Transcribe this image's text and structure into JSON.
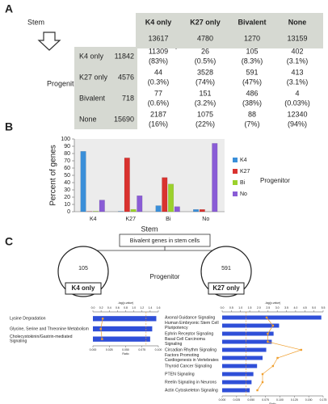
{
  "panel_a": {
    "label": "A",
    "stem_label": "Stem",
    "progenitor_label": "Progenitor",
    "columns": [
      {
        "name": "K4 only",
        "count": 13617
      },
      {
        "name": "K27 only",
        "count": 4780
      },
      {
        "name": "Bivalent",
        "count": 1270
      },
      {
        "name": "None",
        "count": 13159
      }
    ],
    "rows": [
      {
        "name": "K4 only",
        "count": 11842,
        "cells": [
          [
            11309,
            "(83%)"
          ],
          [
            26,
            "(0.5%)"
          ],
          [
            105,
            "(8.3%)"
          ],
          [
            402,
            "(3.1%)"
          ]
        ]
      },
      {
        "name": "K27 only",
        "count": 4576,
        "cells": [
          [
            44,
            "(0.3%)"
          ],
          [
            3528,
            "(74%)"
          ],
          [
            591,
            "(47%)"
          ],
          [
            413,
            "(3.1%)"
          ]
        ]
      },
      {
        "name": "Bivalent",
        "count": 718,
        "cells": [
          [
            77,
            "(0.6%)"
          ],
          [
            151,
            "(3.2%)"
          ],
          [
            486,
            "(38%)"
          ],
          [
            4,
            "(0.03%)"
          ]
        ]
      },
      {
        "name": "None",
        "count": 15690,
        "cells": [
          [
            2187,
            "(16%)"
          ],
          [
            1075,
            "(22%)"
          ],
          [
            88,
            "(7%)"
          ],
          [
            12340,
            "(94%)"
          ]
        ]
      }
    ]
  },
  "panel_c": {
    "label": "C",
    "box": "Bivalent genes in stem cells",
    "progenitor": "Progenitor",
    "groups": [
      {
        "count": 105,
        "label": "K4 only"
      },
      {
        "count": 591,
        "label": "K27 only"
      }
    ]
  },
  "chart_data": [
    {
      "type": "bar",
      "panel_label": "B",
      "categories": [
        "K4",
        "K27",
        "Bi",
        "No"
      ],
      "xlabel": "Stem",
      "ylabel": "Percent of genes",
      "legend_title": "Progenitor",
      "legend": "right",
      "ylim": [
        0,
        100
      ],
      "yticks": [
        0,
        10,
        20,
        30,
        40,
        50,
        60,
        70,
        80,
        90,
        100
      ],
      "series": [
        {
          "name": "K4",
          "color": "#3a8fd9",
          "values": [
            83,
            0.5,
            8.3,
            3.1
          ]
        },
        {
          "name": "K27",
          "color": "#d9322f",
          "values": [
            0.3,
            74,
            47,
            3.1
          ]
        },
        {
          "name": "Bi",
          "color": "#9bd12c",
          "values": [
            0.6,
            3.2,
            38,
            0.03
          ]
        },
        {
          "name": "No",
          "color": "#8a5cd6",
          "values": [
            16,
            22,
            7,
            94
          ]
        }
      ]
    },
    {
      "type": "pathway",
      "categories": [
        "Lysine Degradation",
        "Glycine, Serine and Threonine Metabolism",
        "Cholecystokinin/Gastrin-mediated Signaling"
      ],
      "values": [
        1.55,
        1.45,
        1.4
      ],
      "ratio": [
        0.015,
        0.012,
        0.014
      ],
      "color": "#2f4fd8",
      "ratio_color": "#f0a030",
      "threshold": 1.3,
      "xlabel": "-log(p-value)",
      "x2label": "Ratio",
      "xlim": [
        0,
        1.6
      ],
      "xticks": [
        {
          "value": 0,
          "label": "0.0"
        },
        {
          "value": 0.2,
          "label": "0.2"
        },
        {
          "value": 0.4,
          "label": "0.4"
        },
        {
          "value": 0.6,
          "label": "0.6"
        },
        {
          "value": 0.8,
          "label": "0.8"
        },
        {
          "value": 1,
          "label": "1.0"
        },
        {
          "value": 1.2,
          "label": "1.2"
        },
        {
          "value": 1.4,
          "label": "1.4"
        },
        {
          "value": 1.6,
          "label": "1.6"
        }
      ],
      "x2lim": [
        0,
        0.1
      ],
      "x2ticks": [
        {
          "value": 0,
          "label": "0.000"
        },
        {
          "value": 0.025,
          "label": "0.025"
        },
        {
          "value": 0.05,
          "label": "0.050"
        },
        {
          "value": 0.075,
          "label": "0.075"
        },
        {
          "value": 0.1,
          "label": "0.100"
        }
      ]
    },
    {
      "type": "pathway",
      "categories": [
        "Axonal Guidance Signaling",
        "Human Embryonic Stem Cell Pluripotency",
        "Ephrin Receptor Signaling",
        "Basal Cell Carcinoma Signaling",
        "Circadian Rhythm Signaling",
        "Factors Promoting Cardiogenesis in Vertebrates",
        "Thyroid Cancer Signaling",
        "PTEN Signaling",
        "Reelin Signaling in Neurons",
        "Actin Cytoskeleton Signaling"
      ],
      "values": [
        5.4,
        3.1,
        2.8,
        2.7,
        2.4,
        2.2,
        1.9,
        1.7,
        1.6,
        1.5
      ],
      "ratio": [
        0.077,
        0.088,
        0.079,
        0.079,
        0.137,
        0.096,
        0.088,
        0.07,
        0.07,
        0.061
      ],
      "color": "#2f4fd8",
      "ratio_color": "#f0a030",
      "threshold": 1.3,
      "xlabel": "-log(p-value)",
      "x2label": "Ratio",
      "xlim": [
        0,
        5.5
      ],
      "xticks": [
        {
          "value": 0,
          "label": "0.0"
        },
        {
          "value": 0.5,
          "label": "0.5"
        },
        {
          "value": 1,
          "label": "1.0"
        },
        {
          "value": 1.5,
          "label": "1.5"
        },
        {
          "value": 2,
          "label": "2.0"
        },
        {
          "value": 2.5,
          "label": "2.5"
        },
        {
          "value": 3,
          "label": "3.0"
        },
        {
          "value": 3.5,
          "label": "3.5"
        },
        {
          "value": 4,
          "label": "4.0"
        },
        {
          "value": 4.5,
          "label": "4.5"
        },
        {
          "value": 5,
          "label": "5.0"
        },
        {
          "value": 5.5,
          "label": "5.5"
        }
      ],
      "x2lim": [
        0,
        0.175
      ],
      "x2ticks": [
        {
          "value": 0,
          "label": "0.000"
        },
        {
          "value": 0.025,
          "label": "0.025"
        },
        {
          "value": 0.05,
          "label": "0.050"
        },
        {
          "value": 0.075,
          "label": "0.075"
        },
        {
          "value": 0.1,
          "label": "0.100"
        },
        {
          "value": 0.125,
          "label": "0.125"
        },
        {
          "value": 0.15,
          "label": "0.150"
        },
        {
          "value": 0.175,
          "label": "0.175"
        }
      ]
    }
  ]
}
